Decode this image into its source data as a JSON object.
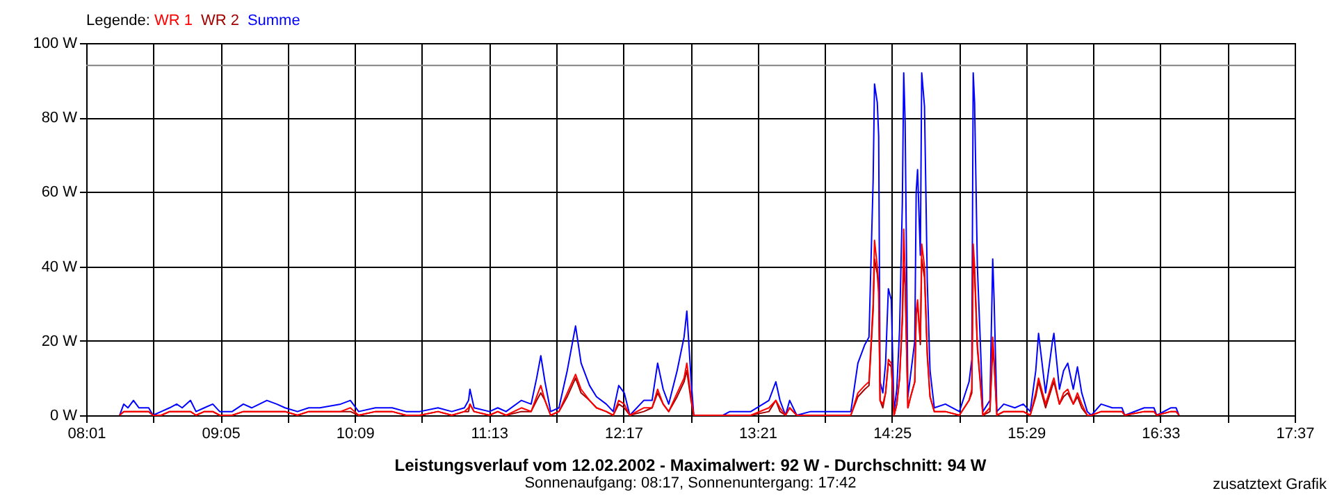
{
  "chart_data": {
    "type": "line",
    "title": "Leistungsverlauf vom 12.02.2002 - Maximalwert: 92 W - Durchschnitt: 94 W",
    "subtitle": "Sonnenaufgang: 08:17, Sonnenuntergang: 17:42",
    "legend_title": "Legende:",
    "annotations": [
      "zusatztext Grafik"
    ],
    "legend": "top left",
    "grid": true,
    "xlim": [
      8.0167,
      17.6167
    ],
    "xticks": [
      {
        "value": 8.0167,
        "label": "08:01"
      },
      {
        "value": 8.55,
        "label": null
      },
      {
        "value": 9.0833,
        "label": "09:05"
      },
      {
        "value": 9.6167,
        "label": null
      },
      {
        "value": 10.15,
        "label": "10:09"
      },
      {
        "value": 10.6833,
        "label": null
      },
      {
        "value": 11.2167,
        "label": "11:13"
      },
      {
        "value": 11.75,
        "label": null
      },
      {
        "value": 12.2833,
        "label": "12:17"
      },
      {
        "value": 12.8167,
        "label": null
      },
      {
        "value": 13.35,
        "label": "13:21"
      },
      {
        "value": 13.8833,
        "label": null
      },
      {
        "value": 14.4167,
        "label": "14:25"
      },
      {
        "value": 14.95,
        "label": null
      },
      {
        "value": 15.4833,
        "label": "15:29"
      },
      {
        "value": 16.0167,
        "label": null
      },
      {
        "value": 16.55,
        "label": "16:33"
      },
      {
        "value": 17.0833,
        "label": null
      },
      {
        "value": 17.6167,
        "label": "17:37"
      }
    ],
    "ylim": [
      0,
      100
    ],
    "yticks": [
      {
        "value": 0,
        "label": "0 W"
      },
      {
        "value": 20,
        "label": "20 W"
      },
      {
        "value": 40,
        "label": "40 W"
      },
      {
        "value": 60,
        "label": "60 W"
      },
      {
        "value": 80,
        "label": "80 W"
      },
      {
        "value": 100,
        "label": "100 W"
      }
    ],
    "ref_lines": [
      {
        "axis": "y",
        "value": 94,
        "color": "#808080"
      }
    ],
    "x": [
      8.282,
      8.315,
      8.348,
      8.392,
      8.436,
      8.513,
      8.547,
      8.613,
      8.679,
      8.735,
      8.779,
      8.845,
      8.889,
      8.955,
      9.022,
      9.077,
      9.176,
      9.265,
      9.331,
      9.452,
      9.53,
      9.596,
      9.695,
      9.784,
      9.872,
      10.038,
      10.115,
      10.181,
      10.314,
      10.447,
      10.557,
      10.667,
      10.811,
      10.921,
      11.021,
      11.054,
      11.065,
      11.098,
      11.22,
      11.286,
      11.352,
      11.474,
      11.551,
      11.595,
      11.628,
      11.661,
      11.706,
      11.772,
      11.838,
      11.904,
      11.948,
      12.015,
      12.07,
      12.148,
      12.203,
      12.247,
      12.291,
      12.335,
      12.446,
      12.512,
      12.556,
      12.6,
      12.644,
      12.711,
      12.766,
      12.788,
      12.821,
      12.843,
      13.075,
      13.13,
      13.296,
      13.44,
      13.495,
      13.528,
      13.572,
      13.605,
      13.661,
      13.771,
      13.848,
      14.091,
      14.147,
      14.202,
      14.235,
      14.268,
      14.279,
      14.301,
      14.312,
      14.323,
      14.345,
      14.367,
      14.389,
      14.412,
      14.434,
      14.456,
      14.478,
      14.5,
      14.511,
      14.522,
      14.533,
      14.544,
      14.566,
      14.599,
      14.61,
      14.621,
      14.643,
      14.654,
      14.676,
      14.687,
      14.698,
      14.72,
      14.754,
      14.842,
      14.953,
      15.03,
      15.052,
      15.063,
      15.074,
      15.096,
      15.118,
      15.14,
      15.196,
      15.218,
      15.229,
      15.251,
      15.306,
      15.394,
      15.461,
      15.516,
      15.56,
      15.582,
      15.638,
      15.693,
      15.704,
      15.748,
      15.781,
      15.814,
      15.858,
      15.891,
      15.925,
      15.969,
      16.002,
      16.079,
      16.168,
      16.245,
      16.267,
      16.422,
      16.499,
      16.521,
      16.632,
      16.675,
      16.698
    ],
    "series": [
      {
        "name": "WR 1",
        "color": "#ff0000",
        "values": [
          0,
          1,
          1,
          1,
          1,
          1,
          0,
          0,
          1,
          1,
          1,
          1,
          0,
          1,
          1,
          0,
          0,
          1,
          1,
          1,
          1,
          1,
          0,
          1,
          1,
          1,
          2,
          0,
          1,
          1,
          0,
          0,
          1,
          0,
          1,
          2,
          3,
          1,
          0,
          1,
          0,
          2,
          1,
          5,
          8,
          4,
          0,
          1,
          6,
          11,
          7,
          4,
          2,
          1,
          0,
          4,
          3,
          0,
          2,
          2,
          7,
          3,
          1,
          6,
          10,
          14,
          5,
          0,
          0,
          0,
          0,
          2,
          4,
          2,
          0,
          2,
          0,
          0,
          0,
          0,
          6,
          8,
          9,
          30,
          47,
          40,
          35,
          4,
          3,
          6,
          15,
          14,
          0,
          3,
          10,
          27,
          50,
          38,
          20,
          2,
          5,
          9,
          28,
          31,
          20,
          46,
          40,
          28,
          17,
          5,
          1,
          1,
          0,
          4,
          7,
          46,
          40,
          19,
          10,
          0,
          2,
          21,
          15,
          0,
          1,
          1,
          1,
          0,
          6,
          10,
          3,
          9,
          10,
          3,
          6,
          7,
          3,
          6,
          3,
          0,
          0,
          1,
          1,
          1,
          0,
          1,
          1,
          0,
          1,
          1,
          0
        ]
      },
      {
        "name": "WR 2",
        "color": "#a00000",
        "values": [
          0,
          1,
          1,
          1,
          1,
          1,
          0,
          0,
          1,
          1,
          1,
          1,
          0,
          1,
          1,
          0,
          0,
          1,
          1,
          1,
          1,
          1,
          0,
          1,
          1,
          1,
          1,
          0,
          1,
          1,
          0,
          0,
          1,
          0,
          1,
          1,
          3,
          1,
          0,
          1,
          0,
          1,
          1,
          4,
          6,
          4,
          0,
          1,
          5,
          10,
          6,
          4,
          2,
          1,
          0,
          3,
          2,
          0,
          1,
          2,
          6,
          3,
          1,
          5,
          9,
          12,
          4,
          0,
          0,
          0,
          0,
          1,
          4,
          1,
          0,
          2,
          0,
          0,
          0,
          0,
          5,
          7,
          8,
          28,
          42,
          38,
          33,
          4,
          2,
          6,
          14,
          13,
          0,
          3,
          10,
          25,
          40,
          35,
          19,
          2,
          5,
          9,
          27,
          30,
          19,
          42,
          37,
          27,
          16,
          5,
          1,
          1,
          0,
          4,
          6,
          42,
          38,
          18,
          9,
          0,
          1,
          18,
          14,
          0,
          1,
          1,
          1,
          0,
          5,
          9,
          2,
          8,
          9,
          3,
          5,
          6,
          3,
          5,
          2,
          0,
          0,
          1,
          1,
          1,
          0,
          1,
          1,
          0,
          1,
          1,
          0
        ]
      },
      {
        "name": "Summe",
        "color": "#0000ff",
        "values": [
          0,
          3,
          2,
          4,
          2,
          2,
          0,
          1,
          2,
          3,
          2,
          4,
          1,
          2,
          3,
          1,
          1,
          3,
          2,
          4,
          3,
          2,
          1,
          2,
          2,
          3,
          4,
          1,
          2,
          2,
          1,
          1,
          2,
          1,
          2,
          4,
          7,
          2,
          1,
          2,
          1,
          4,
          3,
          10,
          16,
          9,
          1,
          2,
          12,
          24,
          14,
          8,
          5,
          3,
          1,
          8,
          6,
          0,
          4,
          4,
          14,
          7,
          3,
          12,
          21,
          28,
          10,
          0,
          0,
          1,
          1,
          4,
          9,
          4,
          0,
          4,
          0,
          1,
          1,
          1,
          14,
          19,
          21,
          63,
          89,
          84,
          75,
          9,
          6,
          14,
          34,
          31,
          1,
          7,
          23,
          57,
          92,
          79,
          43,
          5,
          11,
          20,
          60,
          66,
          43,
          92,
          83,
          60,
          36,
          12,
          2,
          3,
          1,
          9,
          15,
          92,
          84,
          40,
          21,
          1,
          4,
          42,
          31,
          1,
          3,
          2,
          3,
          1,
          12,
          22,
          6,
          20,
          22,
          7,
          12,
          14,
          7,
          13,
          6,
          1,
          0,
          3,
          2,
          2,
          0,
          2,
          2,
          0,
          2,
          2,
          0
        ]
      }
    ]
  }
}
